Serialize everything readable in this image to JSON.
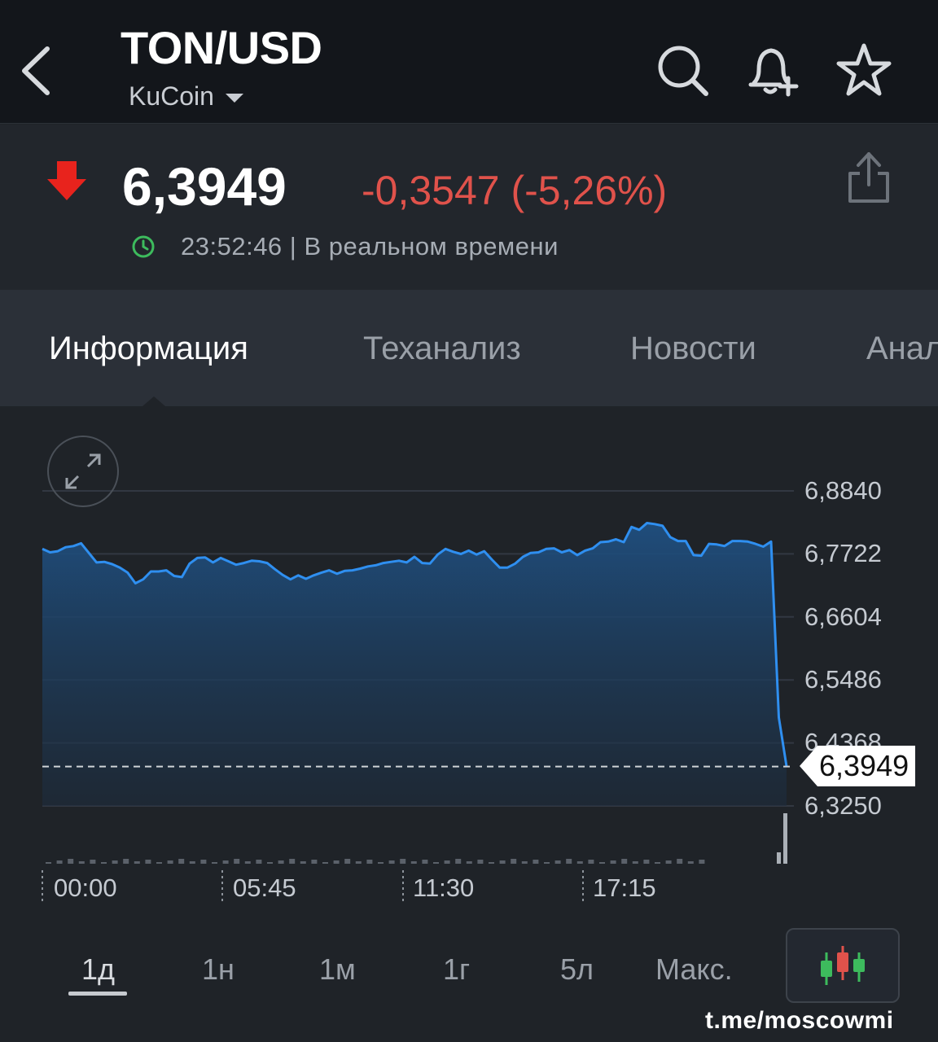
{
  "header": {
    "title": "TON/USD",
    "exchange": "KuCoin",
    "icons": [
      "back-icon",
      "search-icon",
      "bell-plus-icon",
      "star-icon"
    ]
  },
  "quote": {
    "price": "6,3949",
    "change": "-0,3547 (-5,26%)",
    "time": "23:52:46 | В реальном времени",
    "direction": "down",
    "colors": {
      "down": "#e0524b",
      "arrow": "#e8231d",
      "live": "#3dbb5d"
    }
  },
  "tabs": [
    {
      "label": "Информация",
      "active": true
    },
    {
      "label": "Теханализ",
      "active": false
    },
    {
      "label": "Новости",
      "active": false
    },
    {
      "label": "Анал",
      "active": false
    }
  ],
  "chart_data": {
    "type": "area",
    "title": "",
    "x_tick_labels": [
      "00:00",
      "05:45",
      "11:30",
      "17:15"
    ],
    "y_tick_labels": [
      "6,8840",
      "6,7722",
      "6,6604",
      "6,5486",
      "6,4368",
      "6,3250"
    ],
    "ylim": [
      6.325,
      6.884
    ],
    "current_price_label": "6,3949",
    "current_price": 6.3949,
    "line_color": "#2f8ff0",
    "grid": true,
    "series": [
      {
        "values": [
          6.781,
          6.775,
          6.777,
          6.784,
          6.786,
          6.791,
          6.774,
          6.757,
          6.758,
          6.754,
          6.748,
          6.739,
          6.72,
          6.727,
          6.741,
          6.741,
          6.743,
          6.733,
          6.731,
          6.755,
          6.765,
          6.766,
          6.757,
          6.765,
          6.759,
          6.753,
          6.756,
          6.76,
          6.759,
          6.756,
          6.745,
          6.735,
          6.727,
          6.734,
          6.728,
          6.734,
          6.739,
          6.743,
          6.737,
          6.742,
          6.743,
          6.746,
          6.75,
          6.752,
          6.756,
          6.758,
          6.76,
          6.757,
          6.767,
          6.756,
          6.755,
          6.771,
          6.781,
          6.776,
          6.772,
          6.778,
          6.771,
          6.777,
          6.762,
          6.748,
          6.748,
          6.755,
          6.767,
          6.774,
          6.775,
          6.781,
          6.782,
          6.775,
          6.779,
          6.77,
          6.778,
          6.782,
          6.793,
          6.794,
          6.798,
          6.793,
          6.82,
          6.815,
          6.827,
          6.825,
          6.822,
          6.802,
          6.795,
          6.795,
          6.77,
          6.769,
          6.79,
          6.789,
          6.786,
          6.795,
          6.795,
          6.794,
          6.79,
          6.785,
          6.794,
          6.482,
          6.395
        ]
      }
    ]
  },
  "periods": [
    {
      "label": "1д",
      "active": true
    },
    {
      "label": "1н",
      "active": false
    },
    {
      "label": "1м",
      "active": false
    },
    {
      "label": "1г",
      "active": false
    },
    {
      "label": "5л",
      "active": false
    },
    {
      "label": "Макс.",
      "active": false
    }
  ],
  "watermark": "t.me/moscowmi"
}
